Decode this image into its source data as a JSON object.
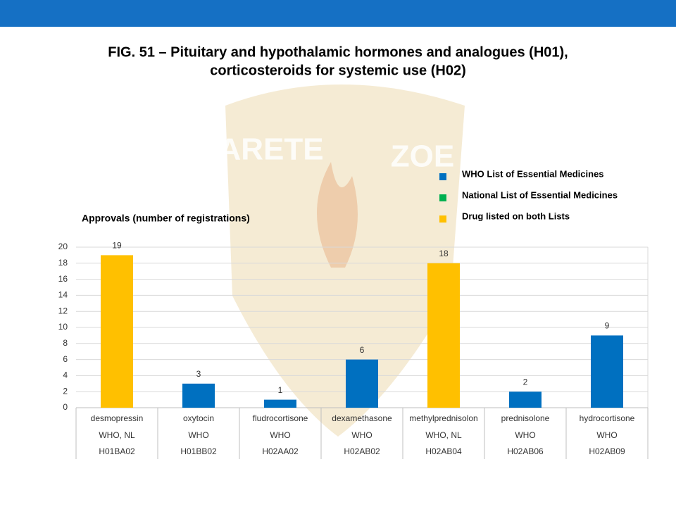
{
  "chart_data": {
    "type": "bar",
    "title": "FIG. 51 – Pituitary and hypothalamic hormones and analogues (H01),",
    "subtitle": "corticosteroids for systemic use (H02)",
    "y_label": "Approvals (number of registrations)",
    "watermark": [
      "ARETE",
      "ZOE"
    ],
    "categories": [
      "desmopressin",
      "oxytocin",
      "fludrocortisone",
      "dexamethasone",
      "methylprednisolon",
      "prednisolone",
      "hydrocortisone"
    ],
    "lists": [
      "WHO, NL",
      "WHO",
      "WHO",
      "WHO",
      "WHO, NL",
      "WHO",
      "WHO"
    ],
    "codes": [
      "H01BA02",
      "H01BB02",
      "H02AA02",
      "H02AB02",
      "H02AB04",
      "H02AB06",
      "H02AB09"
    ],
    "series": [
      {
        "name": "WHO List of Essential Medicines",
        "color": "#0070c0",
        "values": [
          null,
          3,
          1,
          6,
          null,
          2,
          9
        ]
      },
      {
        "name": "National List of Essential Medicines",
        "color": "#00b050",
        "values": [
          null,
          null,
          null,
          null,
          null,
          null,
          null
        ]
      },
      {
        "name": "Drug listed on both Lists",
        "color": "#ffc000",
        "values": [
          19,
          null,
          null,
          null,
          18,
          null,
          null
        ]
      }
    ],
    "ylim": [
      0,
      20
    ],
    "yticks": [
      0,
      2,
      4,
      6,
      8,
      10,
      12,
      14,
      16,
      18,
      20
    ],
    "grid": true
  }
}
